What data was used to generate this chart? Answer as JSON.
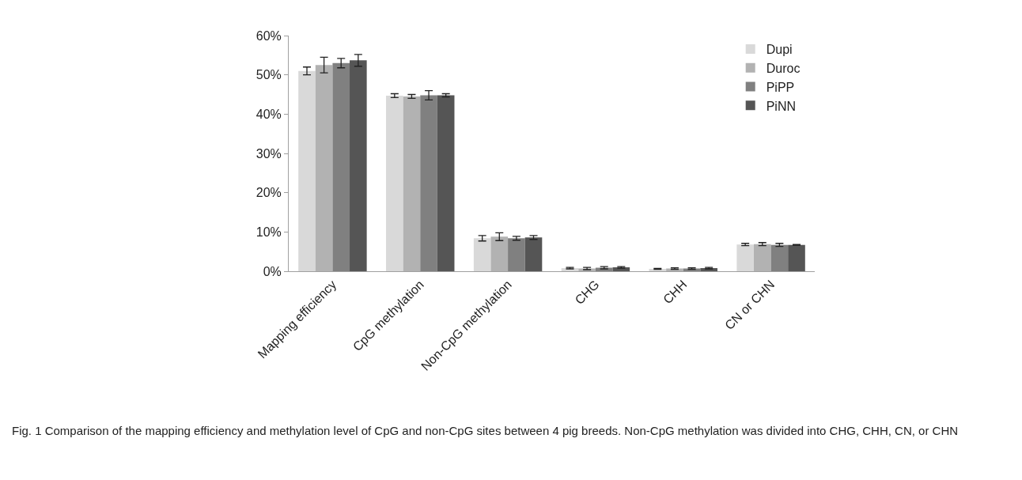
{
  "chart_data": {
    "type": "bar",
    "categories": [
      "Mapping efficiency",
      "CpG methylation",
      "Non-CpG methylation",
      "CHG",
      "CHH",
      "CN or CHN"
    ],
    "series": [
      {
        "name": "Dupi",
        "color": "#d9d9d9",
        "values": [
          51.0,
          44.7,
          8.4,
          0.8,
          0.6,
          6.8
        ],
        "errors": [
          1.0,
          0.5,
          0.7,
          0.2,
          0.1,
          0.3
        ]
      },
      {
        "name": "Duroc",
        "color": "#b2b2b2",
        "values": [
          52.5,
          44.5,
          8.8,
          0.7,
          0.7,
          6.9
        ],
        "errors": [
          2.0,
          0.5,
          1.0,
          0.3,
          0.2,
          0.4
        ]
      },
      {
        "name": "PiPP",
        "color": "#808080",
        "values": [
          53.0,
          44.8,
          8.4,
          0.9,
          0.7,
          6.7
        ],
        "errors": [
          1.2,
          1.2,
          0.5,
          0.3,
          0.2,
          0.4
        ]
      },
      {
        "name": "PiNN",
        "color": "#555555",
        "values": [
          53.7,
          44.8,
          8.6,
          1.0,
          0.8,
          6.7
        ],
        "errors": [
          1.5,
          0.4,
          0.5,
          0.2,
          0.2,
          0.1
        ]
      }
    ],
    "ylim": [
      0,
      60
    ],
    "yticks": [
      {
        "value": 0,
        "label": "0%"
      },
      {
        "value": 10,
        "label": "10%"
      },
      {
        "value": 20,
        "label": "20%"
      },
      {
        "value": 30,
        "label": "30%"
      },
      {
        "value": 40,
        "label": "40%"
      },
      {
        "value": 50,
        "label": "50%"
      },
      {
        "value": 60,
        "label": "60%"
      }
    ],
    "grid": false,
    "legend": "top right",
    "annotations": [
      "Fig. 1 Comparison of the mapping efficiency and methylation level of CpG and non-CpG sites between 4 pig breeds. Non-CpG methylation was divided into CHG, CHH, CN, or CHN"
    ]
  }
}
